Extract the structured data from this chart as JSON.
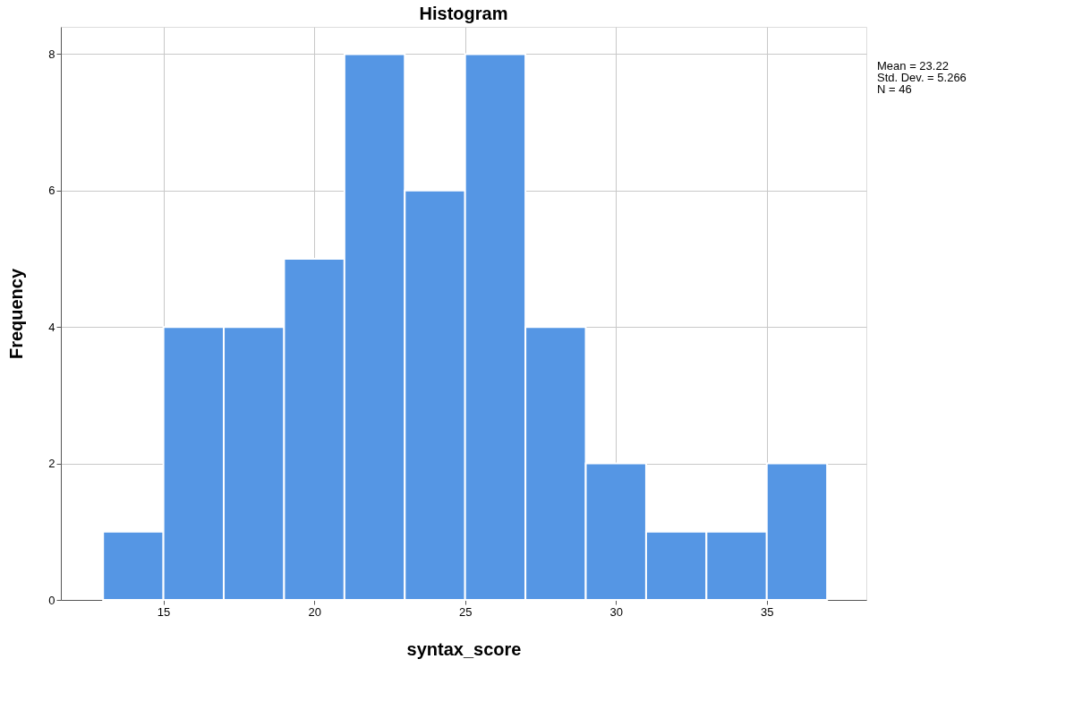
{
  "chart_data": {
    "type": "histogram",
    "title": "Histogram",
    "xlabel": "syntax_score",
    "ylabel": "Frequency",
    "bins": [
      13,
      15,
      17,
      19,
      21,
      23,
      25,
      27,
      29,
      31,
      33,
      35,
      37
    ],
    "values": [
      1,
      4,
      4,
      5,
      8,
      6,
      8,
      4,
      2,
      1,
      1,
      2
    ],
    "color": "#5596e4",
    "xlim": [
      11.6,
      38.3
    ],
    "xticks": [
      15,
      20,
      25,
      30,
      35
    ],
    "ylim": [
      0,
      8.4
    ],
    "yticks": [
      0,
      2,
      4,
      6,
      8
    ],
    "grid": true,
    "annotations": [
      "Mean = 23.22",
      "Std. Dev. = 5.266",
      "N = 46"
    ]
  }
}
